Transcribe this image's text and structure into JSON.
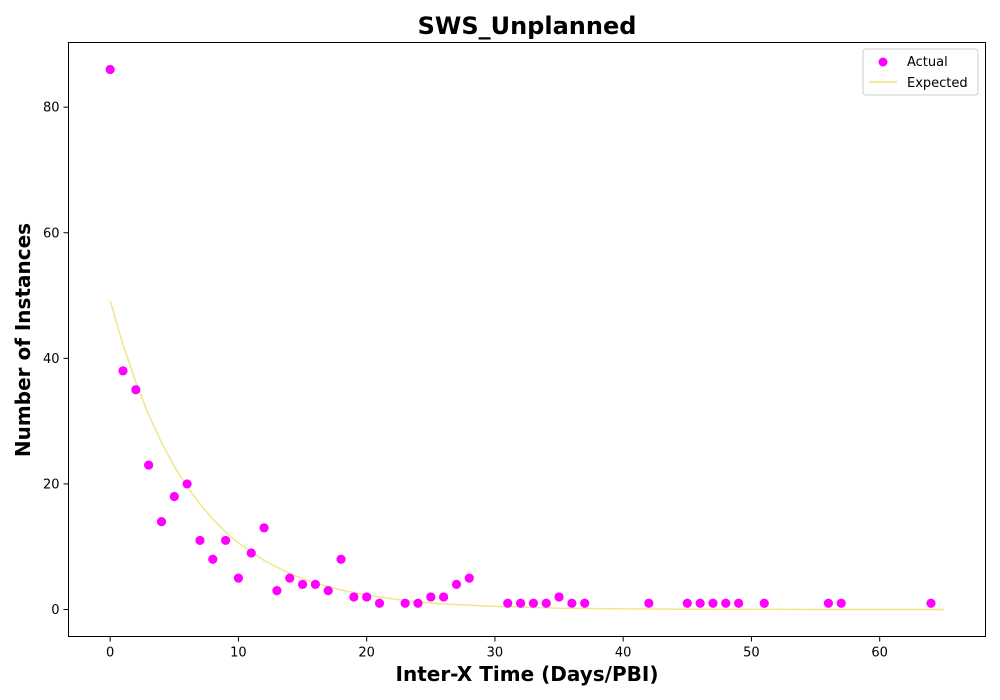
{
  "chart_data": {
    "type": "scatter",
    "title": "SWS_Unplanned",
    "xlabel": "Inter-X Time (Days/PBI)",
    "ylabel": "Number of Instances",
    "xlim": [
      -3.25,
      68.25
    ],
    "ylim": [
      -4.3,
      90.3
    ],
    "xticks": [
      0,
      10,
      20,
      30,
      40,
      50,
      60
    ],
    "yticks": [
      0,
      20,
      40,
      60,
      80
    ],
    "grid": false,
    "legend_position": "top-right",
    "series": [
      {
        "name": "Actual",
        "kind": "scatter",
        "color": "#ff00ff",
        "x": [
          0,
          1,
          2,
          3,
          4,
          5,
          6,
          7,
          8,
          9,
          10,
          11,
          12,
          13,
          14,
          15,
          16,
          17,
          18,
          19,
          20,
          21,
          23,
          24,
          25,
          26,
          27,
          28,
          31,
          32,
          33,
          34,
          35,
          36,
          37,
          42,
          45,
          46,
          47,
          48,
          49,
          51,
          56,
          57,
          64
        ],
        "y": [
          86,
          38,
          35,
          23,
          14,
          18,
          20,
          11,
          8,
          11,
          5,
          9,
          13,
          3,
          5,
          4,
          4,
          3,
          8,
          2,
          2,
          1,
          1,
          1,
          2,
          2,
          4,
          5,
          1,
          1,
          1,
          1,
          2,
          1,
          1,
          1,
          1,
          1,
          1,
          1,
          1,
          1,
          1,
          1,
          1
        ]
      },
      {
        "name": "Expected",
        "kind": "line",
        "color": "#f0e68c",
        "x": [
          0,
          1,
          2,
          3,
          4,
          5,
          6,
          7,
          8,
          9,
          10,
          12,
          14,
          16,
          18,
          20,
          22,
          24,
          26,
          28,
          30,
          32,
          35,
          40,
          45,
          50,
          55,
          60,
          65
        ],
        "y": [
          49.2,
          42.2,
          36.2,
          31.0,
          26.6,
          22.8,
          19.6,
          16.8,
          14.4,
          12.3,
          10.6,
          7.8,
          5.7,
          4.2,
          3.1,
          2.3,
          1.7,
          1.2,
          0.9,
          0.7,
          0.5,
          0.4,
          0.2,
          0.1,
          0.05,
          0.02,
          0.01,
          0.0,
          0.0
        ]
      }
    ]
  }
}
